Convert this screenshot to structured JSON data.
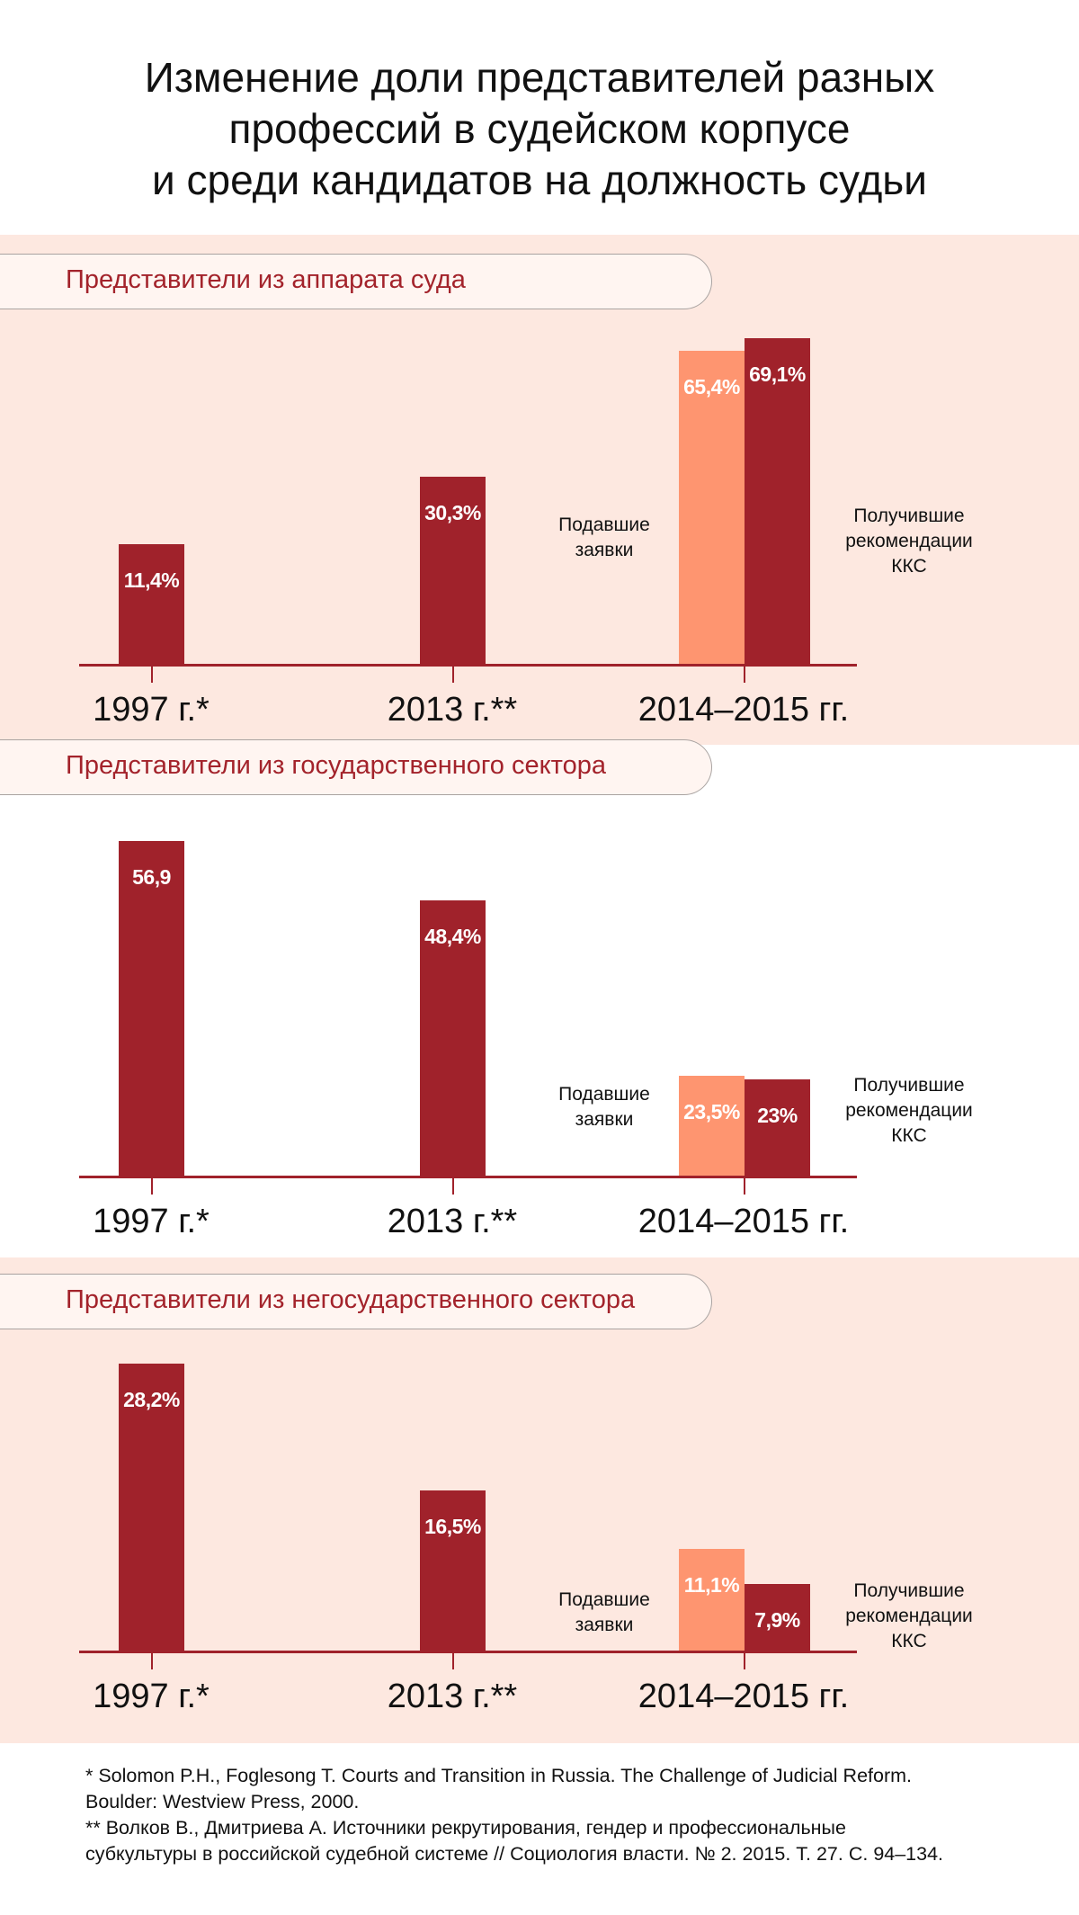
{
  "title_lines": [
    "Изменение доли представителей разных",
    "профессий в судейском корпусе",
    "и среди кандидатов на должность судьи"
  ],
  "colors": {
    "panel_bg": "#fde8e0",
    "bar_main": "#a0222b",
    "bar_applicants": "#fe9570",
    "header_text": "#a3232b"
  },
  "chart_data": [
    {
      "type": "bar",
      "title": "Представители из аппарата суда",
      "categories": [
        "1997 г.*",
        "2013 г.**",
        "2014–2015 гг."
      ],
      "series": [
        {
          "name": "Судейский корпус / Получившие рекомендации ККС",
          "values": [
            11.4,
            30.3,
            69.1
          ],
          "labels": [
            "11,4%",
            "30,3%",
            "69,1%"
          ]
        },
        {
          "name": "Подавшие заявки",
          "values": [
            null,
            null,
            65.4
          ],
          "labels": [
            "",
            "",
            "65,4%"
          ]
        }
      ],
      "annotations": [
        "Подавшие заявки",
        "Получившие рекомендации ККС"
      ],
      "unit": "%"
    },
    {
      "type": "bar",
      "title": "Представители из государственного сектора",
      "categories": [
        "1997 г.*",
        "2013 г.**",
        "2014–2015 гг."
      ],
      "series": [
        {
          "name": "Судейский корпус / Получившие рекомендации ККС",
          "values": [
            56.9,
            48.4,
            23
          ],
          "labels": [
            "56,9",
            "48,4%",
            "23%"
          ]
        },
        {
          "name": "Подавшие заявки",
          "values": [
            null,
            null,
            23.5
          ],
          "labels": [
            "",
            "",
            "23,5%"
          ]
        }
      ],
      "annotations": [
        "Подавшие заявки",
        "Получившие рекомендации ККС"
      ],
      "unit": "%"
    },
    {
      "type": "bar",
      "title": "Представители из негосударственного сектора",
      "categories": [
        "1997 г.*",
        "2013 г.**",
        "2014–2015 гг."
      ],
      "series": [
        {
          "name": "Судейский корпус / Получившие рекомендации ККС",
          "values": [
            28.2,
            16.5,
            7.9
          ],
          "labels": [
            "28,2%",
            "16,5%",
            "7,9%"
          ]
        },
        {
          "name": "Подавшие заявки",
          "values": [
            null,
            null,
            11.1
          ],
          "labels": [
            "",
            "",
            "11,1%"
          ]
        }
      ],
      "annotations": [
        "Подавшие заявки",
        "Получившие рекомендации ККС"
      ],
      "unit": "%"
    }
  ],
  "side_labels": {
    "applied": [
      "Подавшие",
      "заявки"
    ],
    "recommended": [
      "Получившие",
      "рекомендации",
      "ККС"
    ]
  },
  "footnotes": [
    "* Solomon P.H., Foglesong T. Courts and Transition in Russia. The Challenge of Judicial Reform.",
    "Boulder: Westview Press, 2000.",
    "** Волков В., Дмитриева А. Источники рекрутирования, гендер и профессиональные",
    "субкультуры в российской судебной системе // Социология власти. № 2. 2015. Т. 27. С. 94–134."
  ]
}
